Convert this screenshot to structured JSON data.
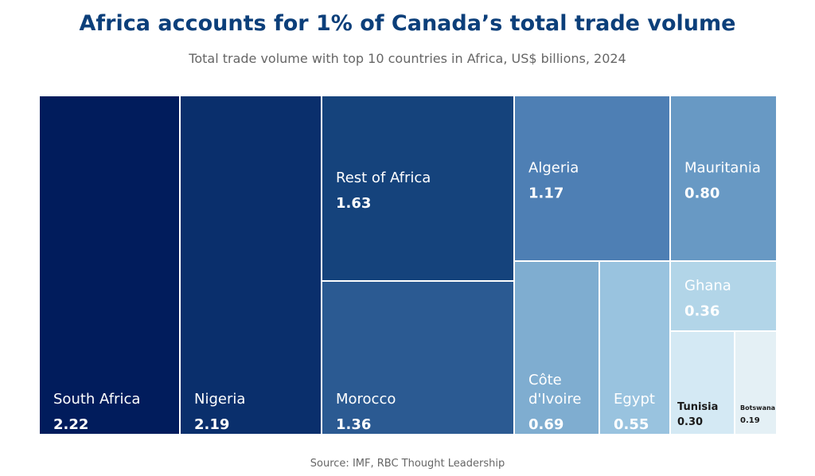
{
  "chart_data": {
    "type": "treemap",
    "title": "Africa accounts for 1% of Canada’s total trade volume",
    "subtitle": "Total trade volume with top 10 countries in Africa, US$ billions, 2024",
    "source": "Source: IMF, RBC Thought Leadership",
    "items": [
      {
        "label": "South Africa",
        "value": 2.22,
        "value_label": "2.22",
        "color": "#011c5c"
      },
      {
        "label": "Nigeria",
        "value": 2.19,
        "value_label": "2.19",
        "color": "#0a2f6c"
      },
      {
        "label": "Rest of Africa",
        "value": 1.63,
        "value_label": "1.63",
        "color": "#15437c"
      },
      {
        "label": "Morocco",
        "value": 1.36,
        "value_label": "1.36",
        "color": "#2b5a92"
      },
      {
        "label": "Algeria",
        "value": 1.17,
        "value_label": "1.17",
        "color": "#4e7fb4"
      },
      {
        "label": "Mauritania",
        "value": 0.8,
        "value_label": "0.80",
        "color": "#6899c4"
      },
      {
        "label": "Côte d'Ivoire",
        "value": 0.69,
        "value_label": "0.69",
        "color": "#7fadd0"
      },
      {
        "label": "Egypt",
        "value": 0.55,
        "value_label": "0.55",
        "color": "#99c3df"
      },
      {
        "label": "Ghana",
        "value": 0.36,
        "value_label": "0.36",
        "color": "#b2d5e8"
      },
      {
        "label": "Tunisia",
        "value": 0.3,
        "value_label": "0.30",
        "color": "#d4e9f4"
      },
      {
        "label": "Botswana",
        "value": 0.19,
        "value_label": "0.19",
        "color": "#e4f0f5"
      }
    ]
  }
}
